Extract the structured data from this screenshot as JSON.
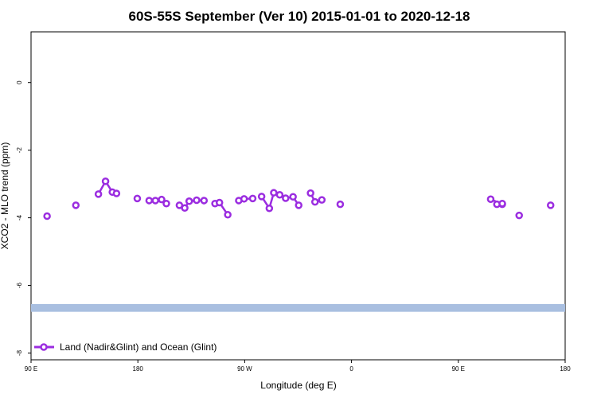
{
  "chart_data": {
    "type": "line",
    "title": "60S-55S September (Ver 10)   2015-01-01 to 2020-12-18",
    "xlabel": "Longitude (deg E)",
    "ylabel": "XCO2 - MLO trend (ppm)",
    "xlim": [
      90,
      270
    ],
    "ylim": [
      -8.2,
      1.5
    ],
    "x_ticks": [
      {
        "value": 90,
        "label": "90 E"
      },
      {
        "value": 126,
        "label": "180"
      },
      {
        "value": 162,
        "label": "90 W"
      },
      {
        "value": 198,
        "label": "0"
      },
      {
        "value": 234,
        "label": "90 E"
      },
      {
        "value": 270,
        "label": "180"
      }
    ],
    "y_ticks": [
      0,
      -2,
      -4,
      -6,
      -8
    ],
    "band": {
      "y_min": -6.78,
      "y_max": -6.55,
      "color": "#a9bfe0"
    },
    "legend": {
      "position": "bottom-left"
    },
    "series": [
      {
        "name": "Land (Nadir&Glint) and Ocean (Glint)",
        "color": "#9b2de0",
        "segments": [
          [
            [
              95.4,
              -3.95
            ]
          ],
          [
            [
              105.1,
              -3.63
            ]
          ],
          [
            [
              112.7,
              -3.3
            ],
            [
              115.1,
              -2.92
            ],
            [
              117.4,
              -3.24
            ],
            [
              118.8,
              -3.28
            ]
          ],
          [
            [
              125.8,
              -3.43
            ]
          ],
          [
            [
              129.8,
              -3.49
            ],
            [
              131.9,
              -3.49
            ],
            [
              134.0,
              -3.46
            ],
            [
              135.6,
              -3.58
            ]
          ],
          [
            [
              140.0,
              -3.63
            ],
            [
              141.8,
              -3.71
            ],
            [
              143.3,
              -3.51
            ],
            [
              145.8,
              -3.48
            ],
            [
              148.3,
              -3.49
            ]
          ],
          [
            [
              152.0,
              -3.58
            ],
            [
              153.5,
              -3.55
            ],
            [
              156.3,
              -3.91
            ]
          ],
          [
            [
              160.0,
              -3.49
            ],
            [
              161.8,
              -3.44
            ],
            [
              164.7,
              -3.43
            ]
          ],
          [
            [
              167.7,
              -3.37
            ],
            [
              170.3,
              -3.72
            ],
            [
              171.8,
              -3.26
            ],
            [
              173.8,
              -3.32
            ],
            [
              175.8,
              -3.42
            ],
            [
              178.3,
              -3.38
            ],
            [
              180.2,
              -3.63
            ]
          ],
          [
            [
              184.2,
              -3.27
            ],
            [
              185.7,
              -3.53
            ]
          ],
          [
            [
              188.0,
              -3.47
            ]
          ],
          [
            [
              194.2,
              -3.6
            ]
          ],
          [
            [
              244.9,
              -3.45
            ],
            [
              248.8,
              -3.6
            ]
          ],
          [
            [
              247.0,
              -3.6
            ]
          ],
          [
            [
              254.5,
              -3.93
            ]
          ],
          [
            [
              265.1,
              -3.63
            ]
          ],
          [
            [
              248.8,
              -3.58
            ]
          ]
        ]
      }
    ]
  }
}
